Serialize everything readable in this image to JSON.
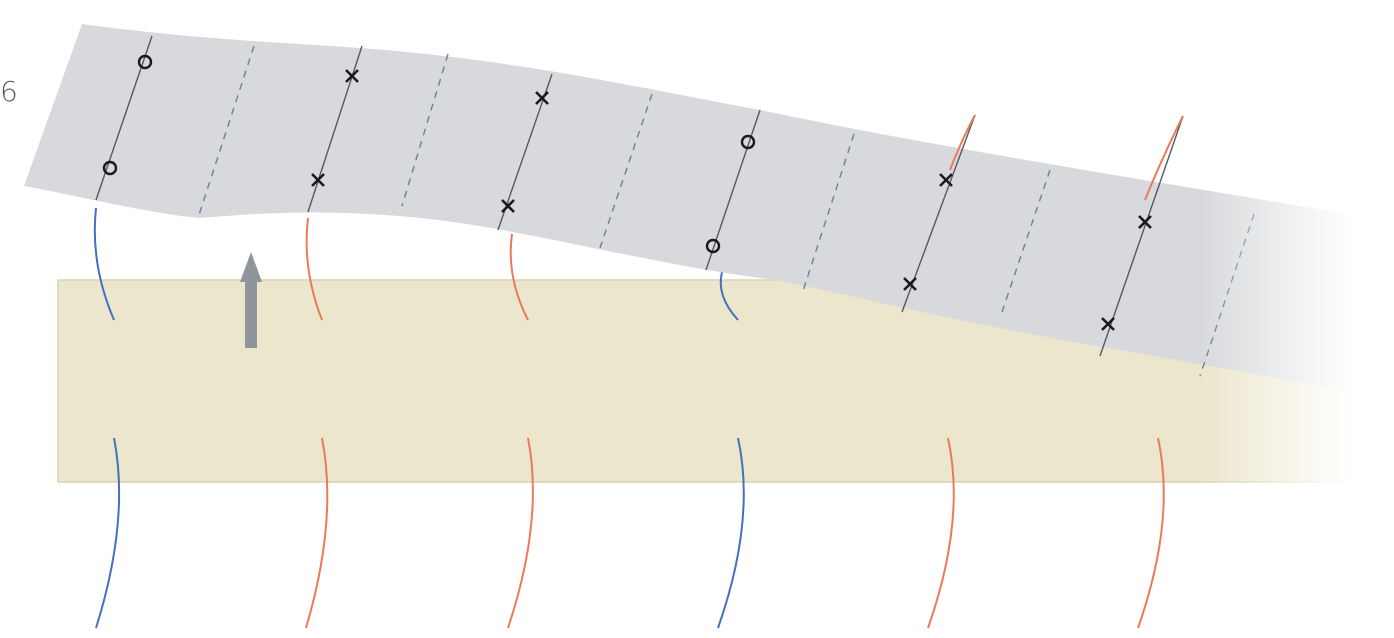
{
  "page_label": "6",
  "colors": {
    "upper_layer": "#d7d9dc",
    "lower_block": "#ebe6cc",
    "lower_block_edge": "#d9d2b0",
    "normal_polarity": "#4470c4",
    "reversed_polarity": "#ec7a5a",
    "arrow": "#8e969c",
    "marker": "#1a1a1a",
    "stripe": "#555a60",
    "dashed_stripe": "#6f8090"
  },
  "markers": {
    "circle": "o",
    "cross": "x"
  },
  "stripes": [
    {
      "polarity": "normal",
      "marker": "circle"
    },
    {
      "polarity": "reversed",
      "marker": "cross"
    },
    {
      "polarity": "reversed",
      "marker": "cross"
    },
    {
      "polarity": "normal",
      "marker": "circle"
    },
    {
      "polarity": "reversed",
      "marker": "cross"
    },
    {
      "polarity": "reversed",
      "marker": "cross"
    }
  ],
  "icons": {
    "arrow": "up-arrow-icon"
  }
}
